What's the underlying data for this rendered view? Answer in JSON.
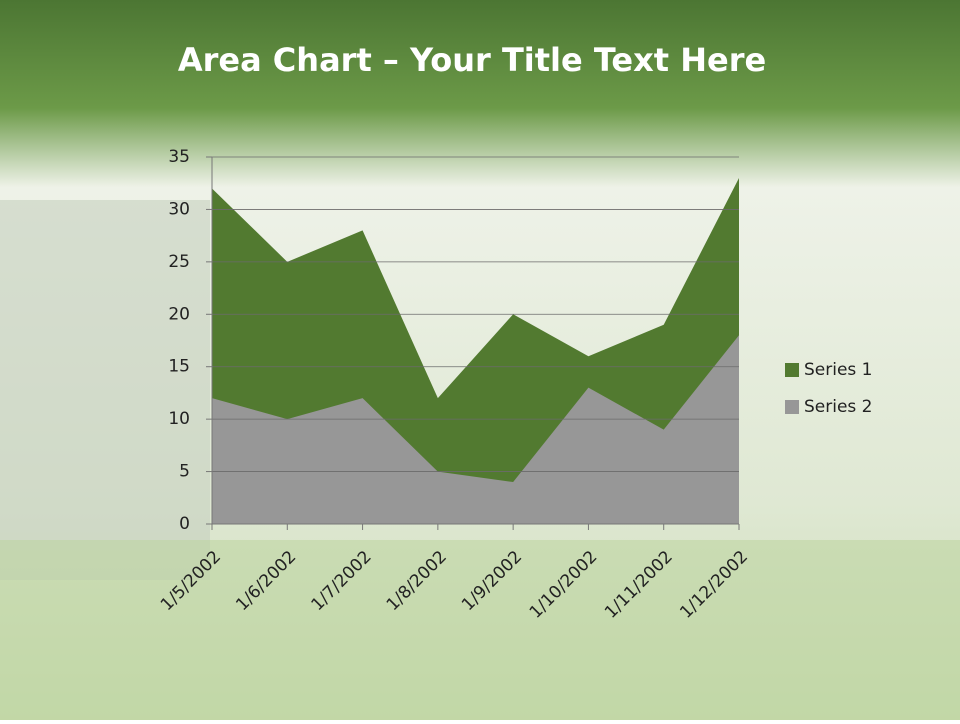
{
  "chart_data": {
    "type": "area",
    "title": "Area Chart – Your Title Text Here",
    "categories": [
      "1/5/2002",
      "1/6/2002",
      "1/7/2002",
      "1/8/2002",
      "1/9/2002",
      "1/10/2002",
      "1/11/2002",
      "1/12/2002"
    ],
    "series": [
      {
        "name": "Series 1",
        "color": "#527a30",
        "values": [
          32,
          25,
          28,
          12,
          20,
          16,
          19,
          33
        ]
      },
      {
        "name": "Series 2",
        "color": "#979797",
        "values": [
          12,
          10,
          12,
          5,
          4,
          13,
          9,
          18
        ]
      }
    ],
    "ylim": [
      0,
      35
    ],
    "yticks": [
      0,
      5,
      10,
      15,
      20,
      25,
      30,
      35
    ],
    "grid": true,
    "legend": "right"
  }
}
